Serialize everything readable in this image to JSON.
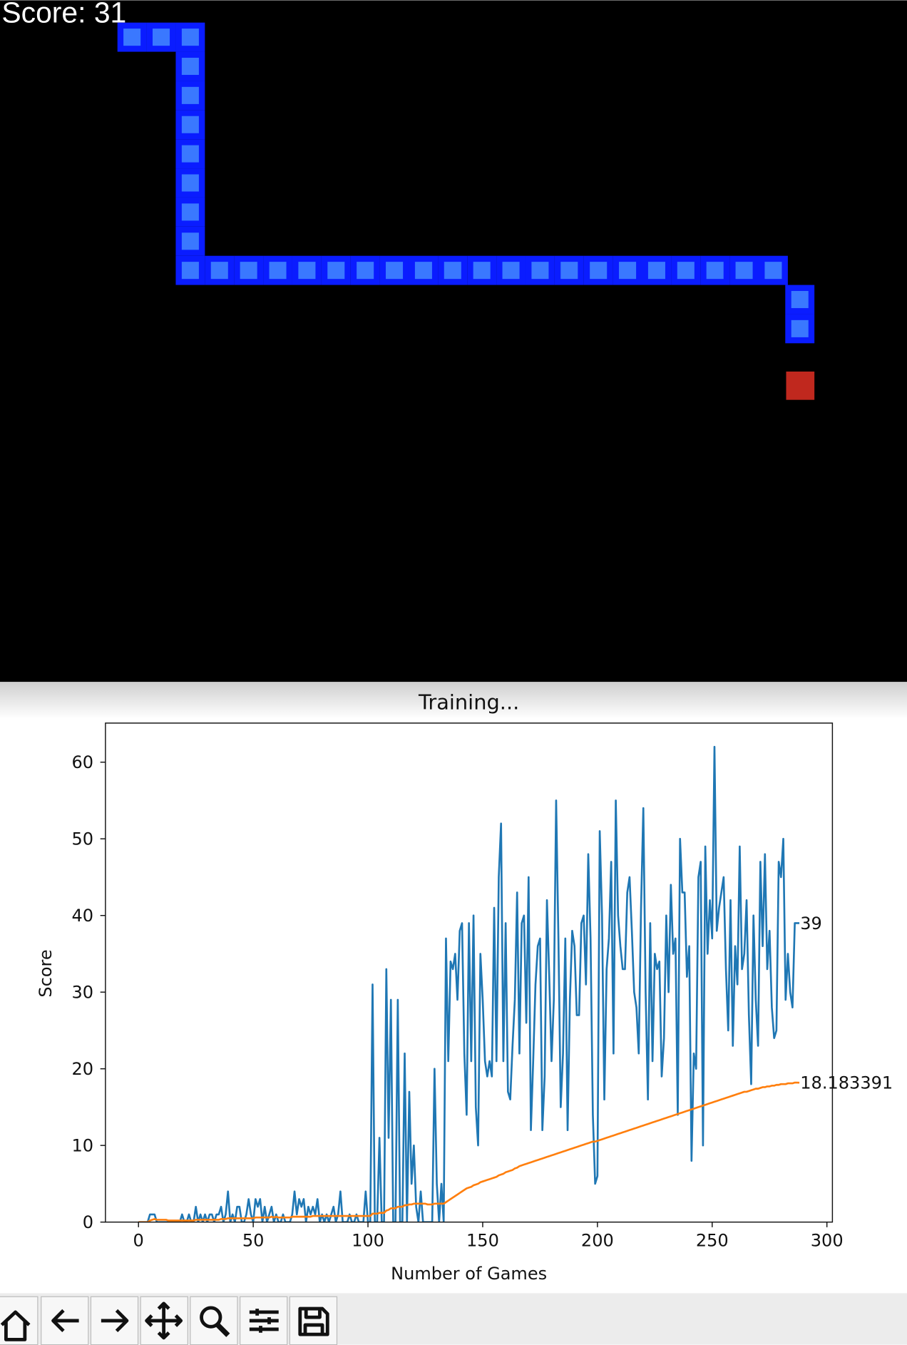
{
  "game": {
    "score_text": "Score: 31"
  },
  "chart_data": {
    "type": "line",
    "title": "Training...",
    "x_label": "Number of Games",
    "y_label": "Score",
    "xlim": [
      -14.4,
      302.4
    ],
    "ylim": [
      0,
      65.1
    ],
    "xticks": [
      0,
      50,
      100,
      150,
      200,
      250,
      300
    ],
    "yticks": [
      0,
      10,
      20,
      30,
      40,
      50,
      60
    ],
    "series": [
      {
        "color": "#1f77b4",
        "end_label": "39",
        "values": [
          0,
          0,
          0,
          0,
          0,
          1,
          1,
          1,
          0,
          0,
          0,
          0,
          0,
          0,
          0,
          0,
          0,
          0,
          0,
          1,
          0,
          0,
          1,
          0,
          0,
          2,
          0,
          1,
          0,
          1,
          0,
          1,
          1,
          0,
          1,
          1,
          2,
          0,
          1,
          4,
          0,
          1,
          0,
          2,
          2,
          0,
          0,
          1,
          3,
          1,
          0,
          3,
          2,
          3,
          0,
          2,
          0,
          1,
          2,
          0,
          1,
          0,
          0,
          1,
          0,
          0,
          0,
          1,
          4,
          1,
          3,
          2,
          3,
          0,
          2,
          1,
          2,
          1,
          3,
          0,
          1,
          0,
          1,
          0,
          1,
          2,
          0,
          1,
          4,
          0,
          0,
          0,
          1,
          0,
          0,
          1,
          0,
          0,
          0,
          4,
          0,
          0,
          31,
          0,
          0,
          11,
          0,
          0,
          33,
          11,
          29,
          0,
          0,
          29,
          0,
          0,
          22,
          0,
          17,
          5,
          10,
          2,
          0,
          4,
          0,
          0,
          0,
          0,
          0,
          20,
          5,
          0,
          5,
          0,
          37,
          21,
          34,
          33,
          35,
          29,
          38,
          39,
          22,
          14,
          39,
          21,
          40,
          15,
          10,
          35,
          29,
          21,
          19,
          21,
          19,
          41,
          21,
          45,
          52,
          21,
          39,
          17,
          16,
          23,
          29,
          43,
          22,
          39,
          40,
          26,
          45,
          12,
          21,
          31,
          36,
          37,
          12,
          19,
          42,
          32,
          21,
          29,
          55,
          37,
          15,
          22,
          37,
          12,
          29,
          38,
          36,
          27,
          27,
          39,
          40,
          31,
          48,
          37,
          14,
          5,
          6,
          51,
          40,
          16,
          33,
          37,
          47,
          22,
          55,
          40,
          36,
          33,
          33,
          43,
          45,
          38,
          30,
          28,
          22,
          41,
          54,
          30,
          16,
          39,
          21,
          35,
          33,
          34,
          19,
          24,
          40,
          30,
          44,
          35,
          37,
          14,
          50,
          43,
          43,
          32,
          36,
          8,
          22,
          20,
          45,
          47,
          10,
          49,
          35,
          42,
          37,
          62,
          38,
          41,
          43,
          45,
          33,
          25,
          42,
          23,
          36,
          31,
          49,
          33,
          35,
          42,
          27,
          18,
          40,
          29,
          23,
          47,
          36,
          48,
          33,
          38,
          28,
          24,
          25,
          47,
          45,
          50,
          29,
          35,
          30,
          28,
          39,
          39,
          39
        ]
      },
      {
        "color": "#ff7f0e",
        "end_label": "18.183391",
        "values": [
          0,
          0,
          0,
          0,
          0,
          0.2,
          0.3,
          0.4,
          0.3,
          0.3,
          0.3,
          0.3,
          0.3,
          0.2,
          0.2,
          0.2,
          0.2,
          0.2,
          0.2,
          0.2,
          0.2,
          0.2,
          0.2,
          0.2,
          0.2,
          0.3,
          0.3,
          0.3,
          0.3,
          0.3,
          0.3,
          0.3,
          0.3,
          0.3,
          0.3,
          0.3,
          0.4,
          0.4,
          0.4,
          0.5,
          0.5,
          0.5,
          0.5,
          0.5,
          0.5,
          0.5,
          0.5,
          0.5,
          0.5,
          0.5,
          0.5,
          0.6,
          0.6,
          0.6,
          0.6,
          0.6,
          0.6,
          0.6,
          0.7,
          0.6,
          0.7,
          0.6,
          0.6,
          0.6,
          0.6,
          0.6,
          0.6,
          0.7,
          0.7,
          0.7,
          0.7,
          0.7,
          0.7,
          0.7,
          0.7,
          0.7,
          0.8,
          0.8,
          0.8,
          0.8,
          0.8,
          0.8,
          0.8,
          0.8,
          0.8,
          0.8,
          0.8,
          0.8,
          0.8,
          0.8,
          0.8,
          0.8,
          0.8,
          0.8,
          0.8,
          0.8,
          0.8,
          0.8,
          0.8,
          0.8,
          0.8,
          0.8,
          1.1,
          1.1,
          1.1,
          1.2,
          1.2,
          1.2,
          1.5,
          1.6,
          1.8,
          1.8,
          1.8,
          2.0,
          2.0,
          2.0,
          2.2,
          2.2,
          2.3,
          2.3,
          2.4,
          2.4,
          2.4,
          2.4,
          2.4,
          2.4,
          2.3,
          2.3,
          2.3,
          2.4,
          2.4,
          2.4,
          2.4,
          2.4,
          2.6,
          2.8,
          3.0,
          3.2,
          3.4,
          3.6,
          3.8,
          4.0,
          4.2,
          4.4,
          4.5,
          4.6,
          4.8,
          4.9,
          5.0,
          5.2,
          5.3,
          5.4,
          5.5,
          5.6,
          5.7,
          5.8,
          5.9,
          6.1,
          6.2,
          6.3,
          6.5,
          6.6,
          6.7,
          6.8,
          7.0,
          7.1,
          7.3,
          7.4,
          7.5,
          7.6,
          7.7,
          7.8,
          7.9,
          8.0,
          8.1,
          8.2,
          8.3,
          8.4,
          8.5,
          8.6,
          8.7,
          8.8,
          8.9,
          9.0,
          9.1,
          9.2,
          9.3,
          9.4,
          9.5,
          9.6,
          9.7,
          9.8,
          9.9,
          10.0,
          10.1,
          10.2,
          10.3,
          10.4,
          10.5,
          10.5,
          10.6,
          10.7,
          10.8,
          10.9,
          11.0,
          11.1,
          11.2,
          11.3,
          11.4,
          11.5,
          11.6,
          11.7,
          11.8,
          11.9,
          12.0,
          12.1,
          12.2,
          12.3,
          12.4,
          12.5,
          12.6,
          12.7,
          12.8,
          12.9,
          13.0,
          13.1,
          13.2,
          13.3,
          13.4,
          13.5,
          13.6,
          13.7,
          13.8,
          13.9,
          14.0,
          14.1,
          14.2,
          14.3,
          14.4,
          14.5,
          14.6,
          14.7,
          14.8,
          14.9,
          15.0,
          15.1,
          15.2,
          15.3,
          15.4,
          15.5,
          15.6,
          15.7,
          15.8,
          15.9,
          16.0,
          16.1,
          16.2,
          16.3,
          16.4,
          16.5,
          16.6,
          16.7,
          16.8,
          16.9,
          17.0,
          17.0,
          17.1,
          17.2,
          17.3,
          17.4,
          17.4,
          17.5,
          17.6,
          17.6,
          17.7,
          17.7,
          17.8,
          17.8,
          17.9,
          17.9,
          18.0,
          18.0,
          18.0,
          18.1,
          18.1,
          18.1,
          18.2,
          18.2,
          18.183391
        ]
      }
    ]
  }
}
